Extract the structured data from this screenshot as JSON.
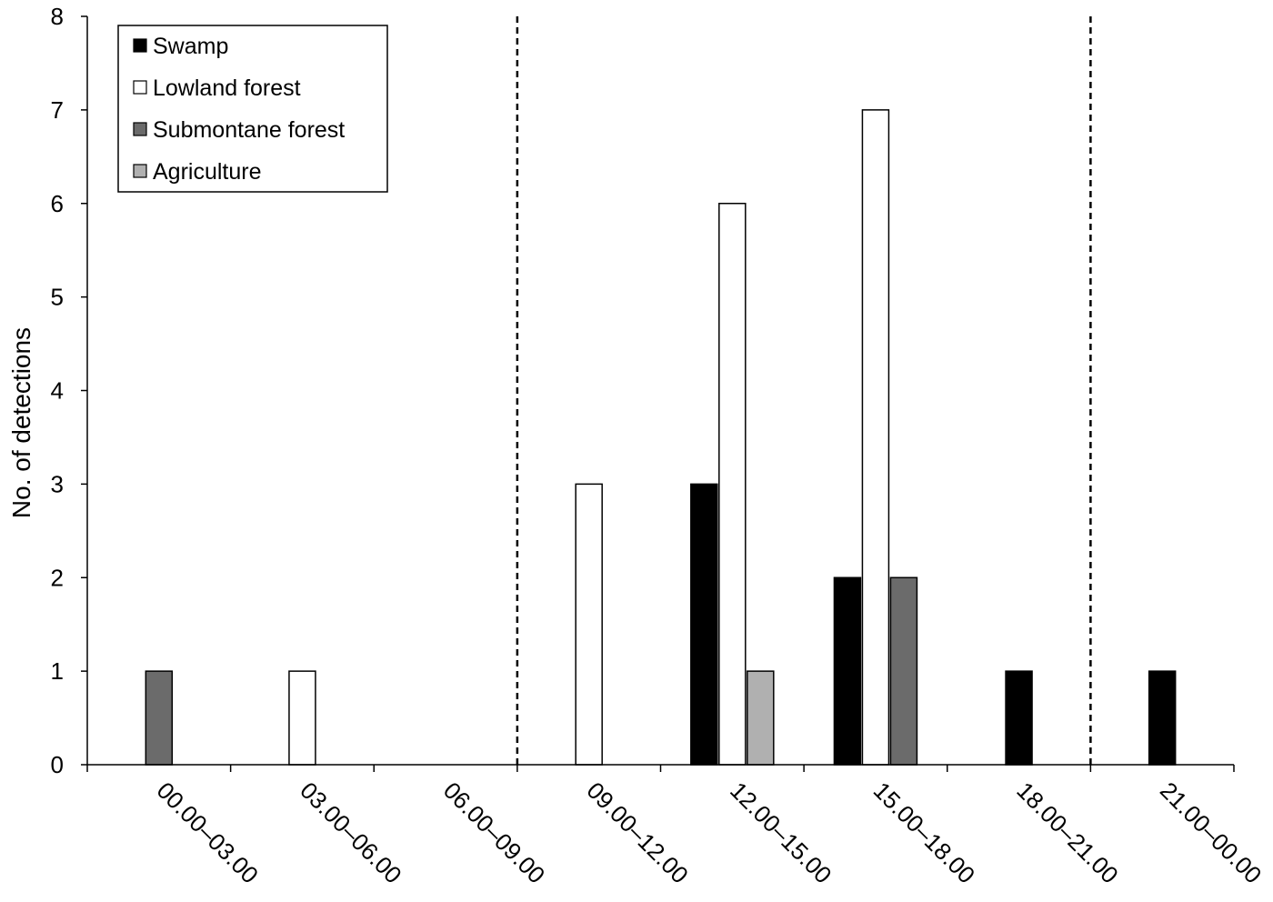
{
  "chart_data": {
    "type": "bar",
    "title": "",
    "xlabel": "",
    "ylabel": "No. of detections",
    "ylim": [
      0,
      8
    ],
    "yticks": [
      "0",
      "1",
      "2",
      "3",
      "4",
      "5",
      "6",
      "7",
      "8"
    ],
    "categories": [
      "00.00–03.00",
      "03.00–06.00",
      "06.00–09.00",
      "09.00–12.00",
      "12.00–15.00",
      "15.00–18.00",
      "18.00–21.00",
      "21.00–00.00"
    ],
    "series": [
      {
        "name": "Swamp",
        "color": "#000000",
        "values": [
          0,
          0,
          0,
          0,
          3,
          2,
          1,
          1
        ]
      },
      {
        "name": "Lowland forest",
        "color": "#ffffff",
        "values": [
          0,
          1,
          0,
          3,
          6,
          7,
          0,
          0
        ]
      },
      {
        "name": "Submontane forest",
        "color": "#6b6b6b",
        "values": [
          1,
          0,
          0,
          0,
          0,
          2,
          0,
          0
        ]
      },
      {
        "name": "Agriculture",
        "color": "#b0b0b0",
        "values": [
          0,
          0,
          0,
          0,
          1,
          0,
          0,
          0
        ]
      }
    ],
    "reference_lines": {
      "style": "dashed",
      "at_category_boundaries": [
        3,
        7
      ]
    },
    "legend_position": "top-left",
    "grid": false
  }
}
